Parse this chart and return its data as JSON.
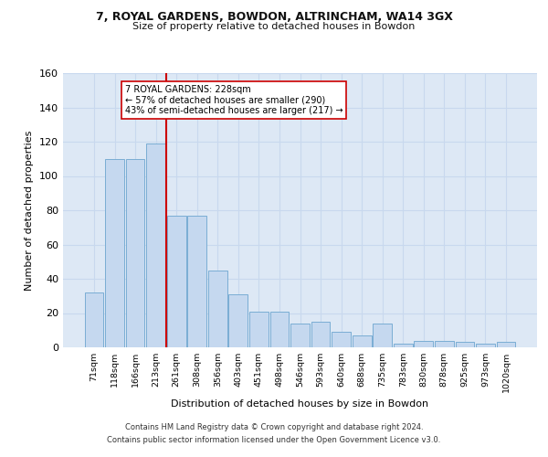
{
  "title1": "7, ROYAL GARDENS, BOWDON, ALTRINCHAM, WA14 3GX",
  "title2": "Size of property relative to detached houses in Bowdon",
  "xlabel": "Distribution of detached houses by size in Bowdon",
  "ylabel": "Number of detached properties",
  "categories": [
    "71sqm",
    "118sqm",
    "166sqm",
    "213sqm",
    "261sqm",
    "308sqm",
    "356sqm",
    "403sqm",
    "451sqm",
    "498sqm",
    "546sqm",
    "593sqm",
    "640sqm",
    "688sqm",
    "735sqm",
    "783sqm",
    "830sqm",
    "878sqm",
    "925sqm",
    "973sqm",
    "1020sqm"
  ],
  "values": [
    32,
    110,
    110,
    119,
    77,
    77,
    45,
    31,
    21,
    21,
    14,
    15,
    9,
    7,
    14,
    2,
    4,
    4,
    3,
    2,
    3
  ],
  "bar_color": "#c5d8ef",
  "bar_edge_color": "#7aadd4",
  "bar_linewidth": 0.7,
  "vline_x_idx": 3,
  "vline_color": "#cc0000",
  "vline_lw": 1.5,
  "annotation_text": "7 ROYAL GARDENS: 228sqm\n← 57% of detached houses are smaller (290)\n43% of semi-detached houses are larger (217) →",
  "annotation_box_color": "#ffffff",
  "annotation_box_edge": "#cc0000",
  "ylim": [
    0,
    160
  ],
  "yticks": [
    0,
    20,
    40,
    60,
    80,
    100,
    120,
    140,
    160
  ],
  "grid_color": "#c8d8ee",
  "background_color": "#dde8f5",
  "footer1": "Contains HM Land Registry data © Crown copyright and database right 2024.",
  "footer2": "Contains public sector information licensed under the Open Government Licence v3.0."
}
